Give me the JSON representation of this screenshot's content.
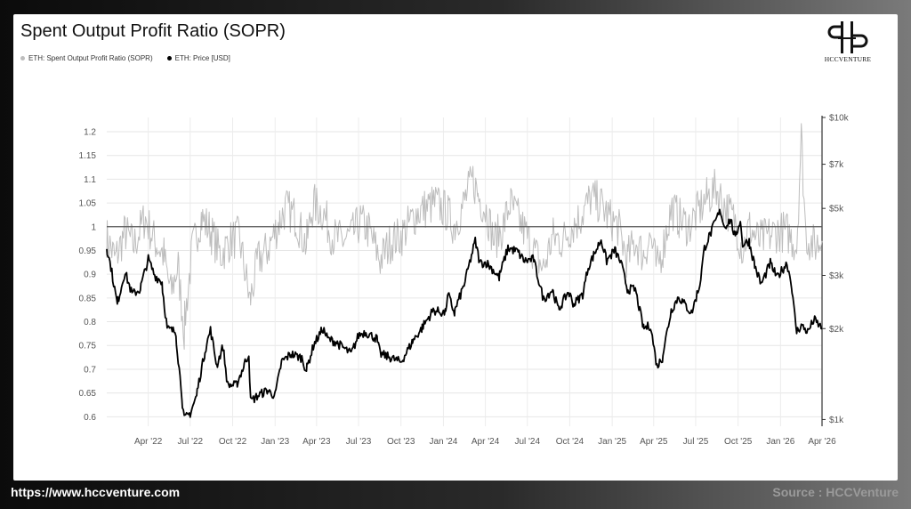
{
  "chart_data": {
    "type": "line",
    "title": "Spent Output Profit Ratio (SOPR)",
    "legend": [
      {
        "label": "ETH: Spent Output Profit Ratio (SOPR)",
        "color": "#bdbdbd"
      },
      {
        "label": "ETH: Price [USD]",
        "color": "#000000"
      }
    ],
    "legend_position": "top-left",
    "grid": true,
    "x_ticks": [
      "Apr '22",
      "Jul '22",
      "Oct '22",
      "Jan '23",
      "Apr '23",
      "Jul '23",
      "Oct '23",
      "Jan '24",
      "Apr '24",
      "Jul '24",
      "Oct '24",
      "Jan '25",
      "Apr '25",
      "Jul '25",
      "Oct '25",
      "Jan '26",
      "Apr '26"
    ],
    "x_range": [
      "2022-01-01",
      "2026-04-01"
    ],
    "y_left": {
      "ticks": [
        "0.6",
        "0.65",
        "0.7",
        "0.75",
        "0.8",
        "0.85",
        "0.9",
        "0.95",
        "1",
        "1.05",
        "1.1",
        "1.15",
        "1.2"
      ],
      "range": [
        0.58,
        1.23
      ]
    },
    "y_right": {
      "scale": "log",
      "ticks": [
        "$1k",
        "$2k",
        "$3k",
        "$5k",
        "$7k",
        "$10k"
      ],
      "tick_values": [
        1000,
        2000,
        3000,
        5000,
        7000,
        10000
      ],
      "range": [
        950,
        10000
      ]
    },
    "reference_line": {
      "axis": "left",
      "value": 1
    },
    "series": [
      {
        "name": "ETH: Spent Output Profit Ratio (SOPR)",
        "axis": "left",
        "color": "#bdbdbd",
        "points": [
          [
            "2022-01-01",
            0.98
          ],
          [
            "2022-01-20",
            0.93
          ],
          [
            "2022-02-10",
            0.99
          ],
          [
            "2022-03-01",
            0.96
          ],
          [
            "2022-03-25",
            1.02
          ],
          [
            "2022-04-15",
            0.97
          ],
          [
            "2022-05-05",
            0.94
          ],
          [
            "2022-05-20",
            0.86
          ],
          [
            "2022-06-05",
            0.92
          ],
          [
            "2022-06-18",
            0.78
          ],
          [
            "2022-07-05",
            0.95
          ],
          [
            "2022-07-25",
            1.02
          ],
          [
            "2022-08-15",
            0.99
          ],
          [
            "2022-09-05",
            0.94
          ],
          [
            "2022-09-25",
            0.97
          ],
          [
            "2022-10-15",
            0.98
          ],
          [
            "2022-11-08",
            0.84
          ],
          [
            "2022-11-25",
            0.93
          ],
          [
            "2022-12-15",
            0.95
          ],
          [
            "2023-01-10",
            1.01
          ],
          [
            "2023-01-25",
            1.04
          ],
          [
            "2023-02-15",
            1.02
          ],
          [
            "2023-03-10",
            0.96
          ],
          [
            "2023-03-25",
            1.05
          ],
          [
            "2023-04-15",
            1.03
          ],
          [
            "2023-05-05",
            0.98
          ],
          [
            "2023-05-25",
            0.97
          ],
          [
            "2023-06-15",
            0.98
          ],
          [
            "2023-07-05",
            1.01
          ],
          [
            "2023-07-25",
            0.99
          ],
          [
            "2023-08-17",
            0.93
          ],
          [
            "2023-09-10",
            0.97
          ],
          [
            "2023-10-01",
            0.98
          ],
          [
            "2023-10-15",
            1.0
          ],
          [
            "2023-11-05",
            1.03
          ],
          [
            "2023-11-25",
            1.04
          ],
          [
            "2023-12-15",
            1.05
          ],
          [
            "2024-01-10",
            1.03
          ],
          [
            "2024-01-25",
            1.0
          ],
          [
            "2024-02-15",
            1.05
          ],
          [
            "2024-03-05",
            1.1
          ],
          [
            "2024-03-15",
            1.07
          ],
          [
            "2024-04-05",
            1.03
          ],
          [
            "2024-04-20",
            0.97
          ],
          [
            "2024-05-10",
            1.0
          ],
          [
            "2024-05-25",
            1.05
          ],
          [
            "2024-06-15",
            1.01
          ],
          [
            "2024-07-05",
            0.97
          ],
          [
            "2024-08-05",
            0.91
          ],
          [
            "2024-08-25",
            0.98
          ],
          [
            "2024-09-15",
            0.97
          ],
          [
            "2024-10-05",
            1.0
          ],
          [
            "2024-10-25",
            1.02
          ],
          [
            "2024-11-15",
            1.06
          ],
          [
            "2024-12-05",
            1.05
          ],
          [
            "2024-12-25",
            1.02
          ],
          [
            "2025-01-15",
            1.0
          ],
          [
            "2025-02-03",
            0.93
          ],
          [
            "2025-02-20",
            0.97
          ],
          [
            "2025-03-10",
            0.94
          ],
          [
            "2025-03-25",
            0.98
          ],
          [
            "2025-04-08",
            0.91
          ],
          [
            "2025-04-25",
            0.97
          ],
          [
            "2025-05-10",
            1.04
          ],
          [
            "2025-05-25",
            1.02
          ],
          [
            "2025-06-15",
            1.0
          ],
          [
            "2025-07-05",
            1.03
          ],
          [
            "2025-07-25",
            1.06
          ],
          [
            "2025-08-15",
            1.08
          ],
          [
            "2025-09-05",
            1.04
          ],
          [
            "2025-09-25",
            1.01
          ],
          [
            "2025-10-11",
            0.95
          ],
          [
            "2025-10-25",
            1.0
          ],
          [
            "2025-11-15",
            0.97
          ],
          [
            "2025-12-05",
            0.98
          ],
          [
            "2025-12-25",
            0.99
          ],
          [
            "2026-01-15",
            0.99
          ],
          [
            "2026-02-05",
            0.96
          ],
          [
            "2026-02-15",
            1.19
          ],
          [
            "2026-02-25",
            0.98
          ],
          [
            "2026-03-15",
            0.96
          ],
          [
            "2026-04-01",
            0.97
          ]
        ]
      },
      {
        "name": "ETH: Price [USD]",
        "axis": "right",
        "color": "#000000",
        "points": [
          [
            "2022-01-01",
            3750
          ],
          [
            "2022-01-10",
            3200
          ],
          [
            "2022-01-24",
            2400
          ],
          [
            "2022-02-10",
            3100
          ],
          [
            "2022-02-25",
            2600
          ],
          [
            "2022-03-15",
            2700
          ],
          [
            "2022-04-01",
            3400
          ],
          [
            "2022-04-15",
            3000
          ],
          [
            "2022-05-01",
            2850
          ],
          [
            "2022-05-12",
            2000
          ],
          [
            "2022-05-31",
            1950
          ],
          [
            "2022-06-13",
            1200
          ],
          [
            "2022-06-18",
            1000
          ],
          [
            "2022-07-01",
            1050
          ],
          [
            "2022-07-15",
            1200
          ],
          [
            "2022-08-01",
            1650
          ],
          [
            "2022-08-14",
            1980
          ],
          [
            "2022-08-28",
            1500
          ],
          [
            "2022-09-10",
            1750
          ],
          [
            "2022-09-20",
            1300
          ],
          [
            "2022-10-10",
            1300
          ],
          [
            "2022-10-25",
            1500
          ],
          [
            "2022-11-05",
            1650
          ],
          [
            "2022-11-09",
            1150
          ],
          [
            "2022-11-25",
            1200
          ],
          [
            "2022-12-15",
            1250
          ],
          [
            "2023-01-01",
            1200
          ],
          [
            "2023-01-15",
            1550
          ],
          [
            "2023-02-05",
            1650
          ],
          [
            "2023-02-28",
            1600
          ],
          [
            "2023-03-10",
            1450
          ],
          [
            "2023-03-25",
            1750
          ],
          [
            "2023-04-15",
            2000
          ],
          [
            "2023-04-25",
            1850
          ],
          [
            "2023-05-15",
            1800
          ],
          [
            "2023-06-15",
            1650
          ],
          [
            "2023-07-01",
            1900
          ],
          [
            "2023-07-15",
            1950
          ],
          [
            "2023-08-10",
            1850
          ],
          [
            "2023-08-17",
            1650
          ],
          [
            "2023-09-10",
            1600
          ],
          [
            "2023-10-01",
            1550
          ],
          [
            "2023-10-25",
            1800
          ],
          [
            "2023-11-15",
            2000
          ],
          [
            "2023-12-10",
            2300
          ],
          [
            "2024-01-05",
            2250
          ],
          [
            "2024-01-12",
            2600
          ],
          [
            "2024-01-25",
            2250
          ],
          [
            "2024-02-15",
            2800
          ],
          [
            "2024-03-10",
            3900
          ],
          [
            "2024-03-20",
            3300
          ],
          [
            "2024-04-05",
            3300
          ],
          [
            "2024-04-20",
            3100
          ],
          [
            "2024-05-01",
            2950
          ],
          [
            "2024-05-20",
            3700
          ],
          [
            "2024-06-10",
            3600
          ],
          [
            "2024-06-25",
            3350
          ],
          [
            "2024-07-15",
            3400
          ],
          [
            "2024-08-05",
            2500
          ],
          [
            "2024-08-25",
            2700
          ],
          [
            "2024-09-07",
            2300
          ],
          [
            "2024-09-28",
            2650
          ],
          [
            "2024-10-10",
            2400
          ],
          [
            "2024-10-29",
            2600
          ],
          [
            "2024-11-10",
            3200
          ],
          [
            "2024-12-08",
            3950
          ],
          [
            "2024-12-20",
            3350
          ],
          [
            "2025-01-07",
            3650
          ],
          [
            "2025-01-20",
            3300
          ],
          [
            "2025-02-03",
            2700
          ],
          [
            "2025-02-20",
            2700
          ],
          [
            "2025-03-10",
            2000
          ],
          [
            "2025-03-25",
            2050
          ],
          [
            "2025-04-08",
            1500
          ],
          [
            "2025-04-20",
            1600
          ],
          [
            "2025-05-09",
            2300
          ],
          [
            "2025-05-25",
            2550
          ],
          [
            "2025-06-22",
            2250
          ],
          [
            "2025-07-10",
            2800
          ],
          [
            "2025-07-20",
            3700
          ],
          [
            "2025-08-15",
            4600
          ],
          [
            "2025-08-24",
            4900
          ],
          [
            "2025-09-01",
            4350
          ],
          [
            "2025-09-15",
            4600
          ],
          [
            "2025-09-25",
            3950
          ],
          [
            "2025-10-06",
            4600
          ],
          [
            "2025-10-11",
            3800
          ],
          [
            "2025-10-25",
            3900
          ],
          [
            "2025-11-05",
            3300
          ],
          [
            "2025-11-20",
            2800
          ],
          [
            "2025-12-10",
            3300
          ],
          [
            "2025-12-25",
            2950
          ],
          [
            "2026-01-15",
            3300
          ],
          [
            "2026-01-25",
            2800
          ],
          [
            "2026-02-05",
            1950
          ],
          [
            "2026-02-15",
            2050
          ],
          [
            "2026-03-01",
            1950
          ],
          [
            "2026-03-15",
            2150
          ],
          [
            "2026-04-01",
            2000
          ]
        ]
      }
    ]
  },
  "logo": {
    "text": "HCCVENTURE"
  },
  "footer": {
    "url": "https://www.hccventure.com",
    "source": "Source : HCCVenture"
  }
}
